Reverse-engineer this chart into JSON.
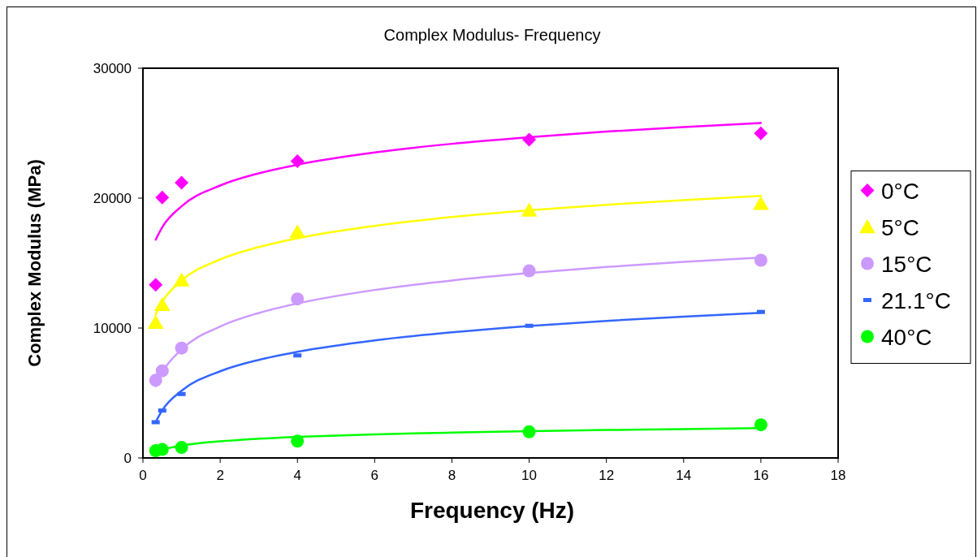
{
  "chart_data": {
    "type": "scatter",
    "title": "Complex Modulus- Frequency",
    "xlabel": "Frequency (Hz)",
    "ylabel": "Complex Modulus (MPa)",
    "xlim": [
      0,
      18
    ],
    "xticks": [
      0,
      2,
      4,
      6,
      8,
      10,
      12,
      14,
      16,
      18
    ],
    "ylim": [
      0,
      30000
    ],
    "yticks": [
      0,
      10000,
      20000,
      30000
    ],
    "grid": false,
    "legend": "right",
    "x": [
      0.33,
      0.5,
      1,
      4,
      10,
      16
    ],
    "series": [
      {
        "name": "0°C",
        "color": "#ff00ff",
        "marker": "diamond",
        "values": [
          13330,
          20040,
          21190,
          22850,
          24500,
          24990
        ]
      },
      {
        "name": "5°C",
        "color": "#ffff00",
        "marker": "triangle",
        "values": [
          10420,
          11790,
          13690,
          17400,
          19060,
          19570
        ]
      },
      {
        "name": "15°C",
        "color": "#cc99ff",
        "marker": "circle",
        "values": [
          5980,
          6710,
          8460,
          12240,
          14400,
          15220
        ]
      },
      {
        "name": "21.1°C",
        "color": "#3366ff",
        "marker": "square",
        "values": [
          2750,
          3650,
          4920,
          7890,
          10170,
          11240
        ]
      },
      {
        "name": "40°C",
        "color": "#00ff00",
        "marker": "circle",
        "values": [
          560,
          650,
          810,
          1290,
          2010,
          2550
        ]
      },
      {
        "type": "line",
        "color": "#ff00ff",
        "x": [
          0.33,
          0.5,
          1,
          2,
          3,
          4,
          6,
          8,
          10,
          12,
          14,
          16
        ],
        "values": [
          16800,
          17760,
          19370,
          20970,
          21910,
          22570,
          23510,
          24180,
          24690,
          25120,
          25470,
          25780
        ]
      },
      {
        "type": "line",
        "color": "#ffff00",
        "x": [
          0.33,
          0.5,
          1,
          2,
          3,
          4,
          6,
          8,
          10,
          12,
          14,
          16
        ],
        "values": [
          11040,
          12020,
          13650,
          15280,
          16230,
          16910,
          17860,
          18540,
          19060,
          19490,
          19850,
          20170
        ]
      },
      {
        "type": "line",
        "color": "#cc99ff",
        "x": [
          0.33,
          0.5,
          1,
          2,
          3,
          4,
          6,
          8,
          10,
          12,
          14,
          16
        ],
        "values": [
          5520,
          6580,
          8350,
          10120,
          11160,
          11890,
          12930,
          13660,
          14230,
          14700,
          15090,
          15430
        ]
      },
      {
        "type": "line",
        "color": "#3366ff",
        "x": [
          0.33,
          0.5,
          1,
          2,
          3,
          4,
          6,
          8,
          10,
          12,
          14,
          16
        ],
        "values": [
          2770,
          3670,
          5170,
          6670,
          7550,
          8170,
          9050,
          9670,
          10160,
          10550,
          10880,
          11170
        ]
      },
      {
        "type": "line",
        "color": "#00ff00",
        "x": [
          0.33,
          0.5,
          1,
          2,
          3,
          4,
          6,
          8,
          10,
          12,
          14,
          16
        ],
        "values": [
          410,
          620,
          950,
          1280,
          1480,
          1620,
          1820,
          1950,
          2060,
          2150,
          2220,
          2290
        ]
      }
    ]
  }
}
